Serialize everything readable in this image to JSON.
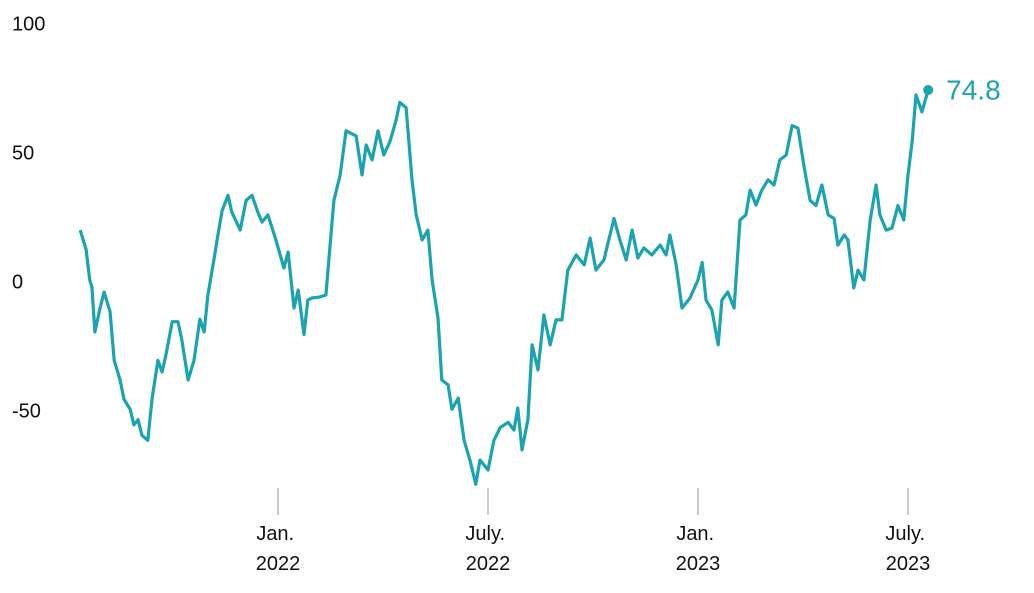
{
  "chart_data": {
    "type": "line",
    "color": "#1aa3b1",
    "x": [
      2021.529,
      2021.543,
      2021.552,
      2021.557,
      2021.564,
      2021.576,
      2021.586,
      2021.6,
      2021.61,
      2021.624,
      2021.633,
      2021.648,
      2021.657,
      2021.667,
      2021.676,
      2021.69,
      2021.7,
      2021.714,
      2021.724,
      2021.733,
      2021.748,
      2021.762,
      2021.771,
      2021.786,
      2021.8,
      2021.814,
      2021.824,
      2021.833,
      2021.848,
      2021.857,
      2021.867,
      2021.881,
      2021.89,
      2021.91,
      2021.924,
      2021.938,
      2021.952,
      2021.962,
      2021.976,
      2021.995,
      2022.014,
      2022.024,
      2022.038,
      2022.048,
      2022.062,
      2022.071,
      2022.081,
      2022.1,
      2022.114,
      2022.124,
      2022.133,
      2022.148,
      2022.162,
      2022.186,
      2022.2,
      2022.21,
      2022.224,
      2022.238,
      2022.252,
      2022.267,
      2022.281,
      2022.29,
      2022.305,
      2022.319,
      2022.329,
      2022.343,
      2022.357,
      2022.367,
      2022.381,
      2022.39,
      2022.405,
      2022.414,
      2022.429,
      2022.443,
      2022.457,
      2022.471,
      2022.481,
      2022.5,
      2022.514,
      2022.529,
      2022.548,
      2022.562,
      2022.571,
      2022.581,
      2022.595,
      2022.605,
      2022.619,
      2022.633,
      2022.648,
      2022.662,
      2022.676,
      2022.69,
      2022.71,
      2022.729,
      2022.743,
      2022.757,
      2022.776,
      2022.8,
      2022.814,
      2022.829,
      2022.843,
      2022.857,
      2022.871,
      2022.89,
      2022.91,
      2022.924,
      2022.933,
      2022.948,
      2022.962,
      2022.981,
      2023.0,
      2023.01,
      2023.019,
      2023.033,
      2023.048,
      2023.057,
      2023.071,
      2023.086,
      2023.1,
      2023.114,
      2023.124,
      2023.138,
      2023.152,
      2023.167,
      2023.181,
      2023.195,
      2023.21,
      2023.224,
      2023.238,
      2023.252,
      2023.267,
      2023.281,
      2023.295,
      2023.31,
      2023.324,
      2023.333,
      2023.348,
      2023.357,
      2023.371,
      2023.381,
      2023.395,
      2023.41,
      2023.424,
      2023.433,
      2023.448,
      2023.462,
      2023.476,
      2023.49,
      2023.5,
      2023.51,
      2023.519,
      2023.533,
      2023.548
    ],
    "values": [
      20.5,
      13,
      1,
      -1.5,
      -19,
      -10,
      -3.5,
      -11,
      -30,
      -37.6,
      -45,
      -49,
      -55,
      -53,
      -59,
      -61,
      -45,
      -30,
      -34.5,
      -28,
      -15,
      -15,
      -22,
      -37.6,
      -30,
      -14,
      -19,
      -4.7,
      9.7,
      18.6,
      28,
      34,
      27.5,
      20.5,
      32,
      34,
      27.5,
      23.6,
      26.4,
      16.7,
      5.8,
      12,
      -9.7,
      -2.7,
      -20,
      -6.6,
      -5.8,
      -5.4,
      -4.7,
      14.7,
      32,
      41.9,
      59,
      57,
      41.9,
      53.5,
      47.7,
      59,
      49.6,
      55,
      63,
      70,
      68,
      40,
      26.4,
      16.7,
      20.5,
      1.2,
      -13.6,
      -37.6,
      -39.5,
      -49,
      -44.6,
      -61,
      -68.6,
      -78,
      -68.6,
      -72.5,
      -61,
      -56,
      -54,
      -57,
      -48.4,
      -64.7,
      -53,
      -24,
      -33.7,
      -12.4,
      -24,
      -14.3,
      -14.3,
      5,
      10.9,
      7,
      17.4,
      5,
      8.9,
      25,
      16.7,
      8.9,
      20.5,
      9.7,
      13.6,
      10.9,
      14.7,
      10.9,
      18.6,
      7,
      -9.7,
      -5.8,
      1.2,
      8,
      -6.6,
      -10.5,
      -24,
      -6.6,
      -3.5,
      -9.7,
      24.4,
      26.4,
      36,
      30.2,
      36,
      40,
      38,
      47.7,
      49.6,
      61,
      60,
      45.7,
      32,
      30,
      38,
      26.4,
      25,
      14.7,
      18.6,
      16.7,
      -1.9,
      5,
      1.2,
      24.4,
      38,
      26.4,
      20.5,
      21.3,
      30,
      24.4,
      41.9,
      55,
      72.9,
      66.3,
      74.8
    ],
    "xlim": [
      2021.5,
      2023.6
    ],
    "xticks": [
      {
        "value": 2022,
        "label": "Jan. 2022"
      },
      {
        "value": 2022.5,
        "label": "July. 2022"
      },
      {
        "value": 2023,
        "label": "Jan. 2023"
      },
      {
        "value": 2023.5,
        "label": "July. 2023"
      }
    ],
    "ylim": [
      -80,
      100
    ],
    "yticks": [
      100,
      50,
      0,
      -50
    ]
  }
}
